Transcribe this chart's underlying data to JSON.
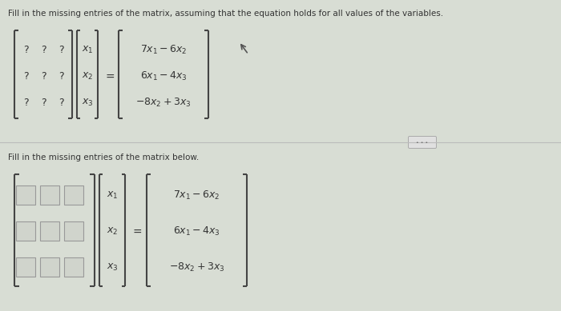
{
  "bg_color": "#d8ddd4",
  "top_instruction": "Fill in the missing entries of the matrix, assuming that the equation holds for all values of the variables.",
  "bottom_instruction": "Fill in the missing entries of the matrix below.",
  "top_section": {
    "matrix_A_entries": [
      "? ? ?",
      "? ? ?",
      "? ? ?"
    ],
    "vector_x": [
      "$x_1$",
      "$x_2$",
      "$x_3$"
    ],
    "vector_b": [
      "$7x_1 - 6x_2$",
      "$6x_1 - 4x_3$",
      "$-8x_2 + 3x_3$"
    ]
  },
  "bottom_section": {
    "vector_x": [
      "$x_1$",
      "$x_2$",
      "$x_3$"
    ],
    "vector_b": [
      "$7x_1 - 6x_2$",
      "$6x_1 - 4x_3$",
      "$-8x_2 + 3x_3$"
    ]
  },
  "text_color": "#333333",
  "box_fill": "#d0d4cc",
  "box_edge": "#999999",
  "bracket_color": "#444444",
  "divider_color": "#bbbbbb",
  "dots_button_bg": "#e0e0e0",
  "dots_button_edge": "#aaaaaa",
  "cursor_color": "#555555"
}
